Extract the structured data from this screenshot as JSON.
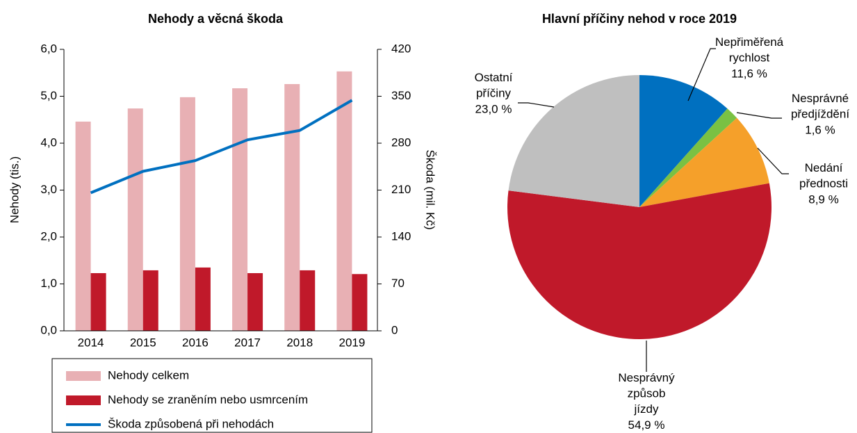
{
  "chart_data": [
    {
      "type": "bar",
      "title": "Nehody a věcná škoda",
      "categories": [
        "2014",
        "2015",
        "2016",
        "2017",
        "2018",
        "2019"
      ],
      "y_label": "Nehody (tis.)",
      "y2_label": "Škoda (mil. Kč)",
      "ylim": [
        0,
        6
      ],
      "yticks": [
        {
          "value": 0,
          "label": "0,0"
        },
        {
          "value": 1,
          "label": "1,0"
        },
        {
          "value": 2,
          "label": "2,0"
        },
        {
          "value": 3,
          "label": "3,0"
        },
        {
          "value": 4,
          "label": "4,0"
        },
        {
          "value": 5,
          "label": "5,0"
        },
        {
          "value": 6,
          "label": "6,0"
        }
      ],
      "y2lim": [
        0,
        420
      ],
      "y2ticks": [
        0,
        70,
        140,
        210,
        280,
        350,
        420
      ],
      "series": [
        {
          "name": "Nehody celkem",
          "color": "#e8b0b4",
          "values": [
            4.46,
            4.74,
            4.98,
            5.17,
            5.26,
            5.53
          ]
        },
        {
          "name": "Nehody se zraněním nebo usmrcením",
          "color": "#c0192a",
          "values": [
            1.23,
            1.29,
            1.35,
            1.23,
            1.29,
            1.21
          ]
        },
        {
          "name": "Škoda způsobená při nehodách",
          "color": "#0070c0",
          "type": "line",
          "axis": "y2",
          "values": [
            206,
            238,
            254,
            285,
            299,
            344
          ]
        }
      ]
    },
    {
      "type": "pie",
      "title": "Hlavní příčiny nehod v roce 2019",
      "categories": [
        "Nepřiměřená\nrychlost",
        "Nesprávné\npředjíždění",
        "Nedání\npřednosti",
        "Nesprávný\nzpůsob\njízdy",
        "Ostatní\npříčiny"
      ],
      "values": [
        11.6,
        1.6,
        8.9,
        54.9,
        23.0
      ],
      "value_labels": [
        "11,6 %",
        "1,6 %",
        "8,9 %",
        "54,9 %",
        "23,0 %"
      ],
      "colors": [
        "#0070c0",
        "#7ac143",
        "#f5a02a",
        "#c0192a",
        "#bfbfbf"
      ]
    }
  ]
}
